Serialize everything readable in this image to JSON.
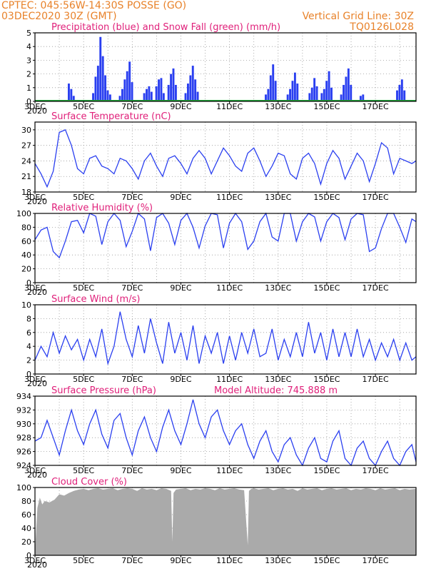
{
  "header": {
    "line1": "CPTEC:  045:56W-14:30S  POSSE (GO)",
    "line2": "03DEC2020 30Z (GMT)",
    "grid_note": "Vertical Grid Line: 30Z",
    "model_id": "TQ0126L028"
  },
  "colors": {
    "header": "#e8822a",
    "title": "#e0207a",
    "series": "#2a3ff0",
    "snow": "#22a83a",
    "cloud": "#aaaaaa",
    "grid": "#999999"
  },
  "x_tick_labels": [
    "3DEC",
    "5DEC",
    "7DEC",
    "9DEC",
    "11DEC",
    "13DEC",
    "15DEC",
    "17DEC"
  ],
  "x_sub_label": "2020",
  "chart_data": [
    {
      "type": "bar",
      "title": "Precipitation (blue) and Snow Fall (green) (mm/h)",
      "ylim": [
        0,
        5
      ],
      "yticks": [
        "0",
        "1",
        "2",
        "3",
        "4",
        "5"
      ],
      "x_days": [
        3,
        18.67
      ],
      "grid": true,
      "series": [
        {
          "name": "Precipitation (blue)",
          "values": [
            [
              4.4,
              1.3
            ],
            [
              4.5,
              0.9
            ],
            [
              4.6,
              0.4
            ],
            [
              5.4,
              0.6
            ],
            [
              5.5,
              1.8
            ],
            [
              5.6,
              2.6
            ],
            [
              5.7,
              4.7
            ],
            [
              5.8,
              3.3
            ],
            [
              5.9,
              1.9
            ],
            [
              6.0,
              0.8
            ],
            [
              6.1,
              0.5
            ],
            [
              6.5,
              0.4
            ],
            [
              6.6,
              0.9
            ],
            [
              6.7,
              1.6
            ],
            [
              6.8,
              2.2
            ],
            [
              6.9,
              2.9
            ],
            [
              7.0,
              1.4
            ],
            [
              7.5,
              0.6
            ],
            [
              7.6,
              0.9
            ],
            [
              7.7,
              1.1
            ],
            [
              7.8,
              0.7
            ],
            [
              8.0,
              1.1
            ],
            [
              8.1,
              1.6
            ],
            [
              8.2,
              1.7
            ],
            [
              8.3,
              0.6
            ],
            [
              8.5,
              1.2
            ],
            [
              8.6,
              2.0
            ],
            [
              8.7,
              2.4
            ],
            [
              8.8,
              1.2
            ],
            [
              9.2,
              0.6
            ],
            [
              9.3,
              1.3
            ],
            [
              9.4,
              1.9
            ],
            [
              9.5,
              2.6
            ],
            [
              9.6,
              1.6
            ],
            [
              9.7,
              0.7
            ],
            [
              12.5,
              0.5
            ],
            [
              12.6,
              0.9
            ],
            [
              12.7,
              1.9
            ],
            [
              12.8,
              2.7
            ],
            [
              12.9,
              1.5
            ],
            [
              13.4,
              0.5
            ],
            [
              13.5,
              0.9
            ],
            [
              13.6,
              1.5
            ],
            [
              13.7,
              2.1
            ],
            [
              13.8,
              1.3
            ],
            [
              14.3,
              0.6
            ],
            [
              14.4,
              1.0
            ],
            [
              14.5,
              1.7
            ],
            [
              14.6,
              1.1
            ],
            [
              14.8,
              0.6
            ],
            [
              14.9,
              0.9
            ],
            [
              15.0,
              1.5
            ],
            [
              15.1,
              2.2
            ],
            [
              15.2,
              1.0
            ],
            [
              15.6,
              0.5
            ],
            [
              15.7,
              1.2
            ],
            [
              15.8,
              1.8
            ],
            [
              15.9,
              2.4
            ],
            [
              16.0,
              1.2
            ],
            [
              16.4,
              0.4
            ],
            [
              16.5,
              0.5
            ],
            [
              17.9,
              0.8
            ],
            [
              18.0,
              1.2
            ],
            [
              18.1,
              1.6
            ],
            [
              18.2,
              0.8
            ]
          ]
        },
        {
          "name": "Snow Fall (green)",
          "values": [
            [
              3.0,
              0
            ],
            [
              18.67,
              0
            ]
          ]
        }
      ]
    },
    {
      "type": "line",
      "title": "Surface Temperature (nC)",
      "ylim": [
        18,
        31.5
      ],
      "yticks": [
        "18",
        "21",
        "24",
        "27",
        "30"
      ],
      "x_days": [
        3,
        18.67
      ],
      "grid": true,
      "x": [
        3.0,
        3.25,
        3.5,
        3.75,
        4.0,
        4.25,
        4.5,
        4.75,
        5.0,
        5.25,
        5.5,
        5.75,
        6.0,
        6.25,
        6.5,
        6.75,
        7.0,
        7.25,
        7.5,
        7.75,
        8.0,
        8.25,
        8.5,
        8.75,
        9.0,
        9.25,
        9.5,
        9.75,
        10.0,
        10.25,
        10.5,
        10.75,
        11.0,
        11.25,
        11.5,
        11.75,
        12.0,
        12.25,
        12.5,
        12.75,
        13.0,
        13.25,
        13.5,
        13.75,
        14.0,
        14.25,
        14.5,
        14.75,
        15.0,
        15.25,
        15.5,
        15.75,
        16.0,
        16.25,
        16.5,
        16.75,
        17.0,
        17.25,
        17.5,
        17.75,
        18.0,
        18.25,
        18.5,
        18.67
      ],
      "values": [
        23.5,
        21.5,
        19.0,
        22.0,
        29.5,
        30.0,
        27.0,
        22.5,
        21.5,
        24.5,
        25.0,
        23.0,
        22.5,
        21.5,
        24.5,
        24.0,
        22.5,
        20.5,
        24.0,
        25.5,
        23.0,
        21.0,
        24.5,
        25.0,
        23.5,
        21.5,
        24.5,
        26.0,
        24.5,
        21.5,
        24.0,
        26.5,
        25.0,
        23.0,
        22.0,
        25.5,
        26.5,
        24.0,
        21.0,
        23.0,
        25.5,
        25.0,
        21.5,
        20.5,
        24.5,
        25.5,
        23.5,
        19.5,
        23.5,
        26.0,
        24.5,
        20.5,
        23.0,
        25.5,
        24.0,
        20.0,
        23.5,
        27.5,
        26.5,
        21.5,
        24.5,
        24.0,
        23.5,
        24.0
      ]
    },
    {
      "type": "line",
      "title": "Relative Humidity (%)",
      "ylim": [
        0,
        100
      ],
      "yticks": [
        "0",
        "20",
        "40",
        "60",
        "80",
        "100"
      ],
      "x_days": [
        3,
        18.67
      ],
      "grid": true,
      "x": [
        3.0,
        3.25,
        3.5,
        3.75,
        4.0,
        4.25,
        4.5,
        4.75,
        5.0,
        5.25,
        5.5,
        5.75,
        6.0,
        6.25,
        6.5,
        6.75,
        7.0,
        7.25,
        7.5,
        7.75,
        8.0,
        8.25,
        8.5,
        8.75,
        9.0,
        9.25,
        9.5,
        9.75,
        10.0,
        10.25,
        10.5,
        10.75,
        11.0,
        11.25,
        11.5,
        11.75,
        12.0,
        12.25,
        12.5,
        12.75,
        13.0,
        13.25,
        13.5,
        13.75,
        14.0,
        14.25,
        14.5,
        14.75,
        15.0,
        15.25,
        15.5,
        15.75,
        16.0,
        16.25,
        16.5,
        16.75,
        17.0,
        17.25,
        17.5,
        17.75,
        18.0,
        18.25,
        18.5,
        18.67
      ],
      "values": [
        62,
        76,
        80,
        45,
        36,
        60,
        88,
        90,
        72,
        100,
        96,
        55,
        88,
        100,
        90,
        52,
        74,
        100,
        92,
        46,
        94,
        100,
        86,
        55,
        90,
        100,
        80,
        50,
        82,
        100,
        98,
        50,
        86,
        100,
        88,
        48,
        60,
        88,
        100,
        66,
        60,
        100,
        100,
        60,
        88,
        100,
        95,
        60,
        88,
        100,
        94,
        62,
        92,
        100,
        98,
        45,
        50,
        78,
        100,
        100,
        80,
        58,
        92,
        88
      ]
    },
    {
      "type": "line",
      "title": "Surface Wind (m/s)",
      "ylim": [
        0,
        10
      ],
      "yticks": [
        "0",
        "2",
        "4",
        "6",
        "8",
        "10"
      ],
      "x_days": [
        3,
        18.67
      ],
      "grid": true,
      "x": [
        3.0,
        3.25,
        3.5,
        3.75,
        4.0,
        4.25,
        4.5,
        4.75,
        5.0,
        5.25,
        5.5,
        5.75,
        6.0,
        6.25,
        6.5,
        6.75,
        7.0,
        7.25,
        7.5,
        7.75,
        8.0,
        8.25,
        8.5,
        8.75,
        9.0,
        9.25,
        9.5,
        9.75,
        10.0,
        10.25,
        10.5,
        10.75,
        11.0,
        11.25,
        11.5,
        11.75,
        12.0,
        12.25,
        12.5,
        12.75,
        13.0,
        13.25,
        13.5,
        13.75,
        14.0,
        14.25,
        14.5,
        14.75,
        15.0,
        15.25,
        15.5,
        15.75,
        16.0,
        16.25,
        16.5,
        16.75,
        17.0,
        17.25,
        17.5,
        17.75,
        18.0,
        18.25,
        18.5,
        18.67
      ],
      "values": [
        2.0,
        4.0,
        2.5,
        6.0,
        3.0,
        5.5,
        3.5,
        5.0,
        2.0,
        5.0,
        2.5,
        6.5,
        1.5,
        4.0,
        9.0,
        5.0,
        2.5,
        7.0,
        3.0,
        8.0,
        4.5,
        1.5,
        7.5,
        3.0,
        6.0,
        2.0,
        7.0,
        1.5,
        5.5,
        3.0,
        6.0,
        1.5,
        5.5,
        2.0,
        6.0,
        3.0,
        6.5,
        2.5,
        3.0,
        6.5,
        2.0,
        5.0,
        2.5,
        6.0,
        2.5,
        7.5,
        3.0,
        6.0,
        2.0,
        6.5,
        2.5,
        6.0,
        2.5,
        6.5,
        2.5,
        5.0,
        2.0,
        4.5,
        2.5,
        5.0,
        2.0,
        4.5,
        2.0,
        2.5
      ]
    },
    {
      "type": "line",
      "title": "Surface Pressure (hPa)",
      "ylim": [
        924,
        934
      ],
      "yticks": [
        "924",
        "926",
        "928",
        "930",
        "932",
        "934"
      ],
      "x_days": [
        3,
        18.67
      ],
      "grid": true,
      "x": [
        3.0,
        3.25,
        3.5,
        3.75,
        4.0,
        4.25,
        4.5,
        4.75,
        5.0,
        5.25,
        5.5,
        5.75,
        6.0,
        6.25,
        6.5,
        6.75,
        7.0,
        7.25,
        7.5,
        7.75,
        8.0,
        8.25,
        8.5,
        8.75,
        9.0,
        9.25,
        9.5,
        9.75,
        10.0,
        10.25,
        10.5,
        10.75,
        11.0,
        11.25,
        11.5,
        11.75,
        12.0,
        12.25,
        12.5,
        12.75,
        13.0,
        13.25,
        13.5,
        13.75,
        14.0,
        14.25,
        14.5,
        14.75,
        15.0,
        15.25,
        15.5,
        15.75,
        16.0,
        16.25,
        16.5,
        16.75,
        17.0,
        17.25,
        17.5,
        17.75,
        18.0,
        18.25,
        18.5,
        18.67
      ],
      "values": [
        927.5,
        928.0,
        930.5,
        928.0,
        925.5,
        929.0,
        932.0,
        929.0,
        927.0,
        930.0,
        932.0,
        928.5,
        926.5,
        930.5,
        931.5,
        928.0,
        925.5,
        929.0,
        931.0,
        928.0,
        926.0,
        929.5,
        932.0,
        929.0,
        927.0,
        930.0,
        933.5,
        930.0,
        928.0,
        931.0,
        932.0,
        929.0,
        927.0,
        929.0,
        930.0,
        927.0,
        925.0,
        927.5,
        929.0,
        926.0,
        924.5,
        927.0,
        928.0,
        925.5,
        924.0,
        926.5,
        928.0,
        925.0,
        924.5,
        927.5,
        929.0,
        925.0,
        924.0,
        926.5,
        927.5,
        925.0,
        924.0,
        926.0,
        927.5,
        925.0,
        924.0,
        926.0,
        927.0,
        924.5
      ]
    },
    {
      "type": "area",
      "title": "Cloud Cover (%)",
      "ylim": [
        0,
        100
      ],
      "yticks": [
        "0",
        "20",
        "40",
        "60",
        "80",
        "100"
      ],
      "x_days": [
        3,
        18.67
      ],
      "grid": true,
      "x": [
        3.0,
        3.1,
        3.2,
        3.3,
        3.4,
        3.6,
        3.8,
        4.0,
        4.2,
        4.4,
        4.6,
        4.8,
        5.0,
        5.2,
        5.4,
        5.6,
        5.8,
        6.0,
        6.2,
        6.4,
        6.6,
        6.8,
        7.0,
        7.2,
        7.4,
        7.6,
        7.8,
        8.0,
        8.2,
        8.4,
        8.6,
        8.65,
        8.7,
        8.8,
        9.0,
        9.2,
        9.4,
        9.6,
        9.8,
        10.0,
        10.2,
        10.4,
        10.6,
        10.8,
        11.0,
        11.2,
        11.4,
        11.6,
        11.75,
        11.8,
        11.9,
        12.0,
        12.2,
        12.4,
        12.6,
        12.8,
        13.0,
        13.2,
        13.4,
        13.6,
        13.8,
        14.0,
        14.2,
        14.4,
        14.6,
        14.8,
        15.0,
        15.2,
        15.4,
        15.6,
        15.8,
        16.0,
        16.2,
        16.4,
        16.6,
        16.8,
        17.0,
        17.2,
        17.4,
        17.6,
        17.8,
        18.0,
        18.2,
        18.4,
        18.67
      ],
      "values": [
        5,
        70,
        85,
        75,
        80,
        78,
        82,
        90,
        88,
        92,
        95,
        97,
        98,
        96,
        98,
        99,
        97,
        98,
        99,
        96,
        98,
        99,
        98,
        95,
        99,
        97,
        98,
        96,
        99,
        98,
        95,
        20,
        92,
        97,
        98,
        99,
        96,
        98,
        97,
        99,
        98,
        96,
        99,
        97,
        98,
        99,
        97,
        96,
        15,
        95,
        98,
        99,
        97,
        98,
        99,
        96,
        98,
        99,
        97,
        98,
        95,
        99,
        97,
        98,
        99,
        96,
        98,
        99,
        97,
        98,
        99,
        96,
        98,
        97,
        99,
        98,
        96,
        99,
        97,
        98,
        99,
        96,
        98,
        97,
        98
      ]
    }
  ],
  "panels": {
    "precip": {
      "title": "Precipitation (blue) and Snow Fall (green) (mm/h)"
    },
    "temp": {
      "title": "Surface Temperature (nC)"
    },
    "rh": {
      "title": "Relative Humidity (%)"
    },
    "wind": {
      "title": "Surface Wind (m/s)"
    },
    "pressure": {
      "title": "Surface Pressure (hPa)",
      "extra": "Model Altitude: 745.888  m"
    },
    "cloud": {
      "title": "Cloud Cover (%)"
    }
  }
}
